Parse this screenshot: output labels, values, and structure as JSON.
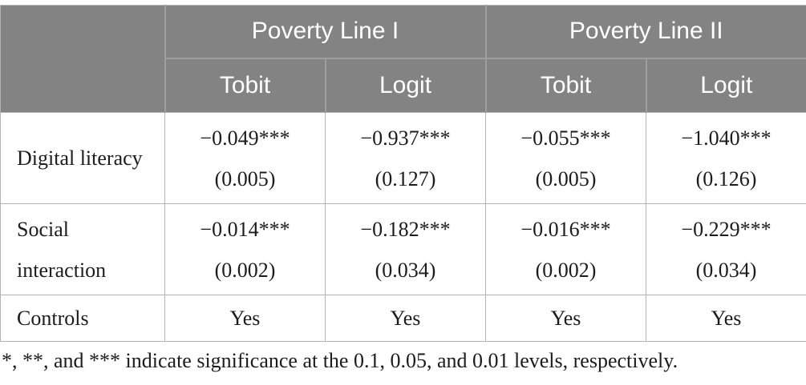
{
  "table": {
    "groups": [
      {
        "label": "Poverty Line I"
      },
      {
        "label": "Poverty Line II"
      }
    ],
    "subheaders": [
      "Tobit",
      "Logit",
      "Tobit",
      "Logit"
    ],
    "rows": [
      {
        "label": "Digital literacy",
        "cells": [
          {
            "coef": "−0.049***",
            "se": "(0.005)"
          },
          {
            "coef": "−0.937***",
            "se": "(0.127)"
          },
          {
            "coef": "−0.055***",
            "se": "(0.005)"
          },
          {
            "coef": "−1.040***",
            "se": "(0.126)"
          }
        ]
      },
      {
        "label": "Social interaction",
        "cells": [
          {
            "coef": "−0.014***",
            "se": "(0.002)"
          },
          {
            "coef": "−0.182***",
            "se": "(0.034)"
          },
          {
            "coef": "−0.016***",
            "se": "(0.002)"
          },
          {
            "coef": "−0.229***",
            "se": "(0.034)"
          }
        ]
      },
      {
        "label": "Controls",
        "cells": [
          "Yes",
          "Yes",
          "Yes",
          "Yes"
        ]
      }
    ],
    "footnote": "*, **, and *** indicate significance at the 0.1, 0.05, and 0.01 levels, respectively."
  },
  "colors": {
    "header_bg": "#838383",
    "header_text": "#ffffff",
    "header_divider": "#9e9e9e",
    "body_border": "#b3b3b3",
    "body_text": "#1c1c1c"
  }
}
